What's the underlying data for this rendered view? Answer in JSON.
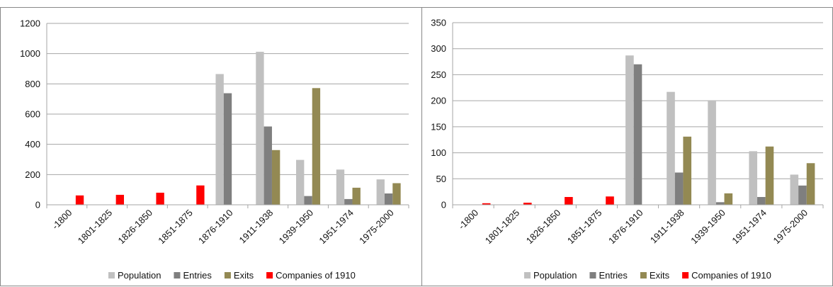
{
  "chart_data": [
    {
      "type": "bar",
      "title": "",
      "xlabel": "",
      "ylabel": "",
      "categories": [
        "-1800",
        "1801-1825",
        "1826-1850",
        "1851-1875",
        "1876-1910",
        "1911-1938",
        "1939-1950",
        "1951-1974",
        "1975-2000"
      ],
      "ylim": [
        0,
        1200
      ],
      "yticks": [
        0,
        200,
        400,
        600,
        800,
        1000,
        1200
      ],
      "grid": true,
      "legend_position": "bottom",
      "series": [
        {
          "name": "Population",
          "color": "#c0c0c0",
          "values": [
            null,
            null,
            null,
            null,
            865,
            1012,
            297,
            233,
            168
          ]
        },
        {
          "name": "Entries",
          "color": "#7f7f7f",
          "values": [
            null,
            null,
            null,
            null,
            738,
            518,
            58,
            38,
            75
          ]
        },
        {
          "name": "Exits",
          "color": "#938953",
          "values": [
            null,
            null,
            null,
            null,
            null,
            362,
            772,
            113,
            143
          ]
        },
        {
          "name": "Companies of 1910",
          "color": "#ff0000",
          "values": [
            62,
            66,
            80,
            128,
            null,
            null,
            null,
            null,
            null
          ]
        }
      ]
    },
    {
      "type": "bar",
      "title": "",
      "xlabel": "",
      "ylabel": "",
      "categories": [
        "-1800",
        "1801-1825",
        "1826-1850",
        "1851-1875",
        "1876-1910",
        "1911-1938",
        "1939-1950",
        "1951-1974",
        "1975-2000"
      ],
      "ylim": [
        0,
        350
      ],
      "yticks": [
        0,
        50,
        100,
        150,
        200,
        250,
        300,
        350
      ],
      "grid": true,
      "legend_position": "bottom",
      "series": [
        {
          "name": "Population",
          "color": "#c0c0c0",
          "values": [
            null,
            null,
            null,
            null,
            287,
            217,
            201,
            103,
            58
          ]
        },
        {
          "name": "Entries",
          "color": "#7f7f7f",
          "values": [
            null,
            null,
            null,
            null,
            270,
            62,
            5,
            15,
            37
          ]
        },
        {
          "name": "Exits",
          "color": "#938953",
          "values": [
            null,
            null,
            null,
            null,
            null,
            131,
            22,
            112,
            80
          ]
        },
        {
          "name": "Companies of 1910",
          "color": "#ff0000",
          "values": [
            3,
            4,
            15,
            16,
            null,
            null,
            null,
            null,
            null
          ]
        }
      ]
    }
  ]
}
